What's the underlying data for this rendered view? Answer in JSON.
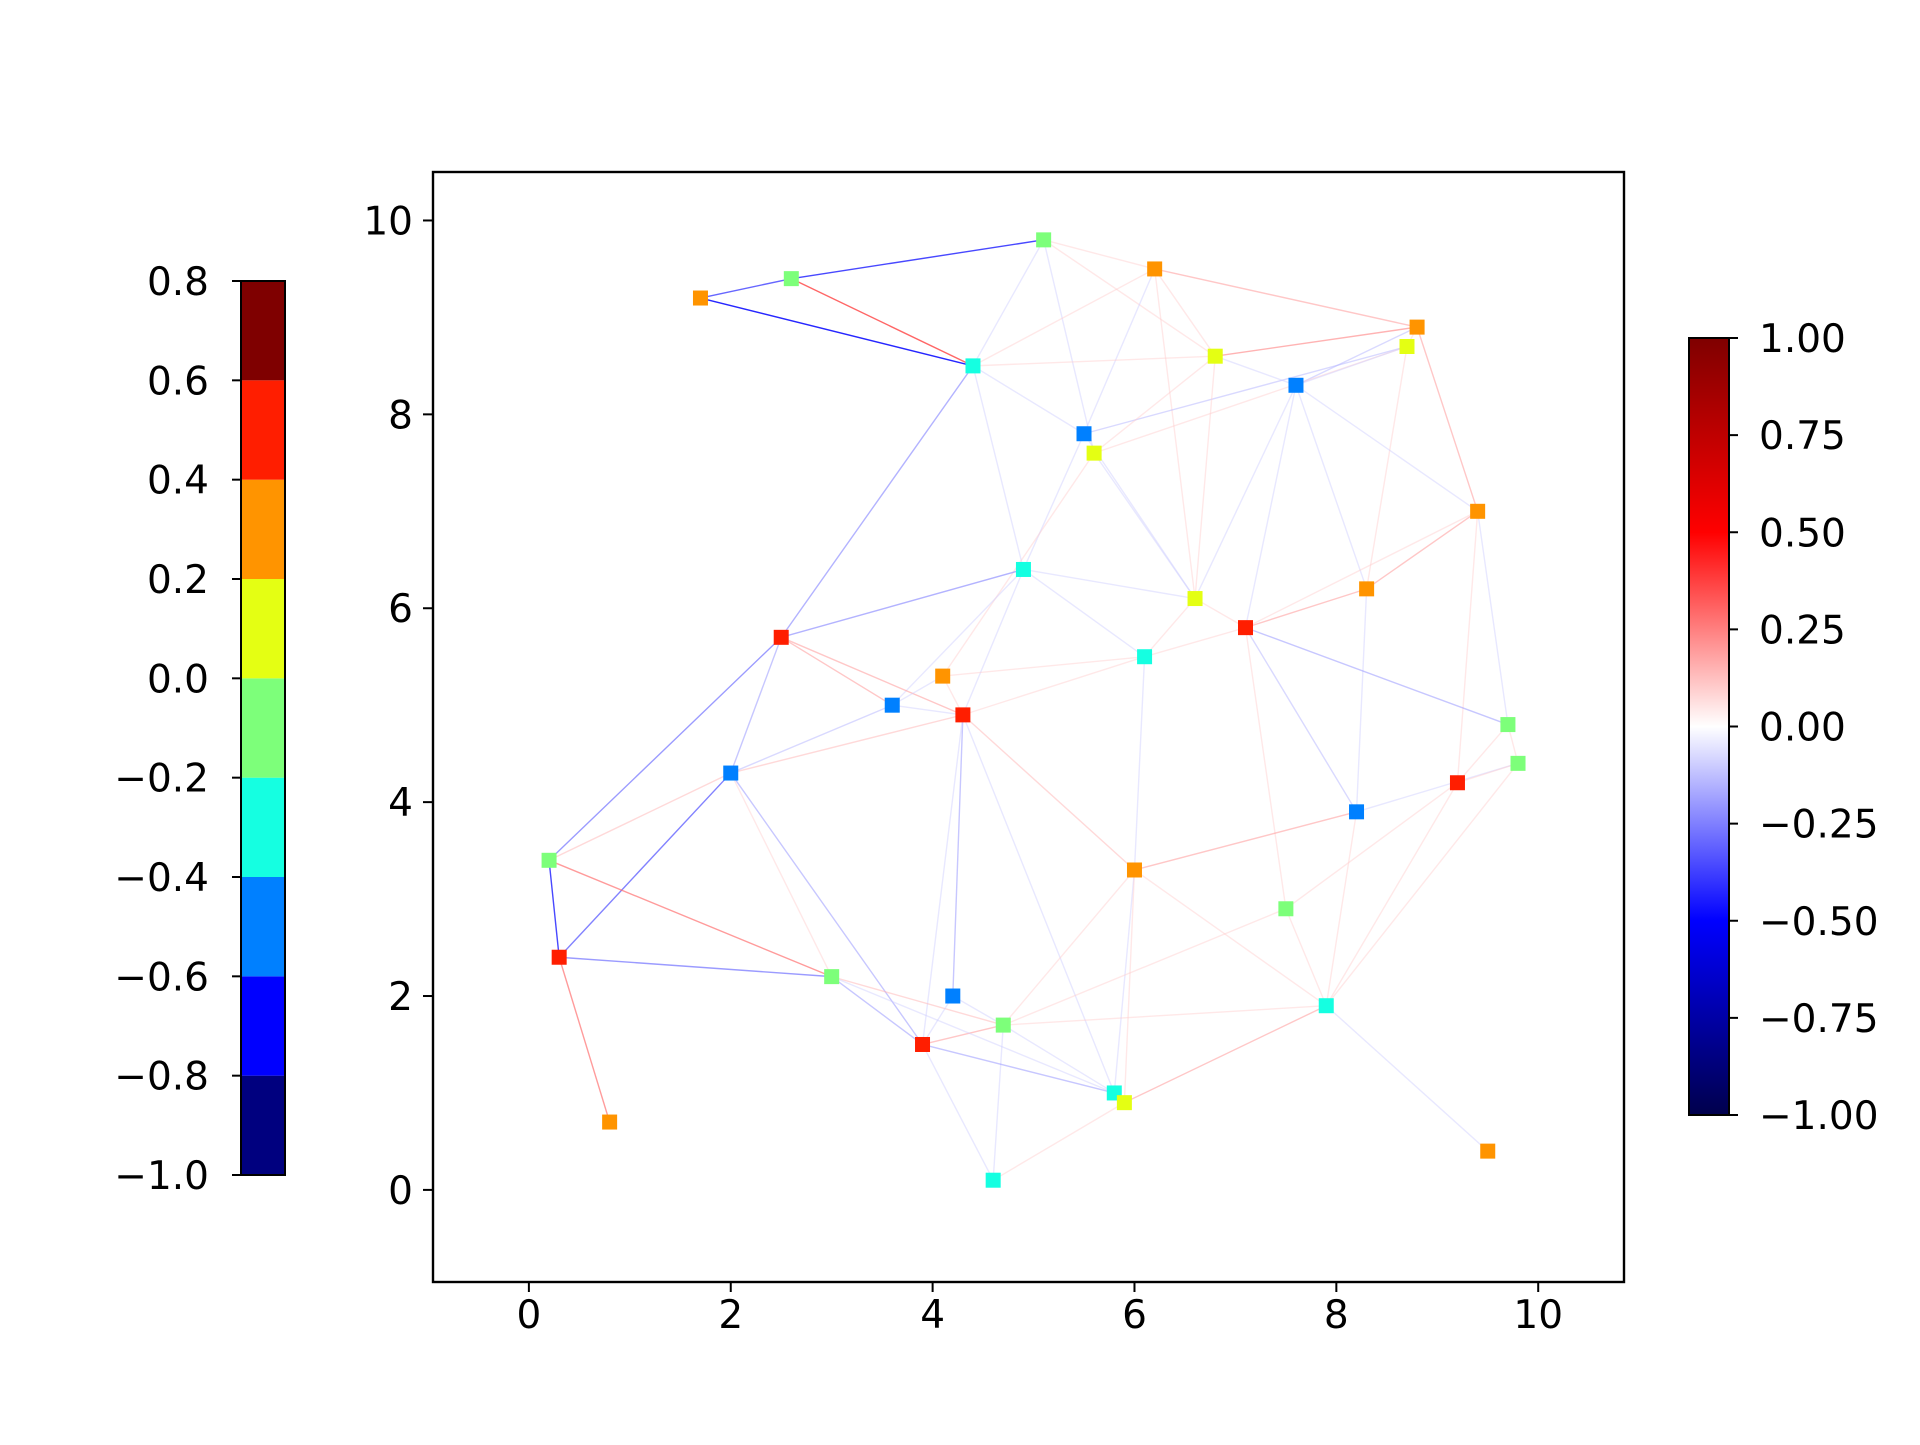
{
  "chart_data": {
    "type": "scatter",
    "title": "",
    "xlabel": "",
    "ylabel": "",
    "xlim": [
      -0.95,
      10.85
    ],
    "ylim": [
      -0.95,
      10.5
    ],
    "x_ticks": [
      "0",
      "2",
      "4",
      "6",
      "8",
      "10"
    ],
    "y_ticks": [
      "0",
      "2",
      "4",
      "6",
      "8",
      "10"
    ],
    "grid": false,
    "nodes": [
      {
        "x": 1.7,
        "y": 9.2,
        "value": 0.3
      },
      {
        "x": 2.6,
        "y": 9.4,
        "value": -0.1
      },
      {
        "x": 5.1,
        "y": 9.8,
        "value": -0.1
      },
      {
        "x": 6.2,
        "y": 9.5,
        "value": 0.3
      },
      {
        "x": 8.8,
        "y": 8.9,
        "value": 0.3
      },
      {
        "x": 8.7,
        "y": 8.7,
        "value": 0.1
      },
      {
        "x": 6.8,
        "y": 8.6,
        "value": 0.1
      },
      {
        "x": 4.4,
        "y": 8.5,
        "value": -0.3
      },
      {
        "x": 7.6,
        "y": 8.3,
        "value": -0.5
      },
      {
        "x": 5.5,
        "y": 7.8,
        "value": -0.5
      },
      {
        "x": 5.6,
        "y": 7.6,
        "value": 0.1
      },
      {
        "x": 9.4,
        "y": 7.0,
        "value": 0.3
      },
      {
        "x": 4.9,
        "y": 6.4,
        "value": -0.3
      },
      {
        "x": 8.3,
        "y": 6.2,
        "value": 0.3
      },
      {
        "x": 6.6,
        "y": 6.1,
        "value": 0.1
      },
      {
        "x": 7.1,
        "y": 5.8,
        "value": 0.5
      },
      {
        "x": 2.5,
        "y": 5.7,
        "value": 0.5
      },
      {
        "x": 6.1,
        "y": 5.5,
        "value": -0.3
      },
      {
        "x": 4.1,
        "y": 5.3,
        "value": 0.3
      },
      {
        "x": 3.6,
        "y": 5.0,
        "value": -0.5
      },
      {
        "x": 4.3,
        "y": 4.9,
        "value": 0.5
      },
      {
        "x": 9.7,
        "y": 4.8,
        "value": -0.1
      },
      {
        "x": 9.8,
        "y": 4.4,
        "value": -0.1
      },
      {
        "x": 2.0,
        "y": 4.3,
        "value": -0.5
      },
      {
        "x": 9.2,
        "y": 4.2,
        "value": 0.5
      },
      {
        "x": 8.2,
        "y": 3.9,
        "value": -0.5
      },
      {
        "x": 0.2,
        "y": 3.4,
        "value": -0.1
      },
      {
        "x": 6.0,
        "y": 3.3,
        "value": 0.3
      },
      {
        "x": 7.5,
        "y": 2.9,
        "value": -0.1
      },
      {
        "x": 0.3,
        "y": 2.4,
        "value": 0.5
      },
      {
        "x": 3.0,
        "y": 2.2,
        "value": -0.1
      },
      {
        "x": 4.2,
        "y": 2.0,
        "value": -0.5
      },
      {
        "x": 7.9,
        "y": 1.9,
        "value": -0.3
      },
      {
        "x": 4.7,
        "y": 1.7,
        "value": -0.1
      },
      {
        "x": 3.9,
        "y": 1.5,
        "value": 0.5
      },
      {
        "x": 5.8,
        "y": 1.0,
        "value": -0.3
      },
      {
        "x": 5.9,
        "y": 0.9,
        "value": 0.1
      },
      {
        "x": 0.8,
        "y": 0.7,
        "value": 0.3
      },
      {
        "x": 9.5,
        "y": 0.4,
        "value": 0.3
      },
      {
        "x": 4.6,
        "y": 0.1,
        "value": -0.3
      }
    ],
    "edges": [
      {
        "source": 0,
        "target": 1,
        "weight": -0.4
      },
      {
        "source": 0,
        "target": 7,
        "weight": -0.5
      },
      {
        "source": 1,
        "target": 2,
        "weight": -0.45
      },
      {
        "source": 1,
        "target": 7,
        "weight": 0.4
      },
      {
        "source": 2,
        "target": 3,
        "weight": 0.1
      },
      {
        "source": 2,
        "target": 7,
        "weight": -0.1
      },
      {
        "source": 2,
        "target": 10,
        "weight": -0.1
      },
      {
        "source": 2,
        "target": 6,
        "weight": 0.1
      },
      {
        "source": 3,
        "target": 4,
        "weight": 0.2
      },
      {
        "source": 3,
        "target": 6,
        "weight": 0.1
      },
      {
        "source": 3,
        "target": 9,
        "weight": -0.1
      },
      {
        "source": 3,
        "target": 14,
        "weight": 0.1
      },
      {
        "source": 3,
        "target": 7,
        "weight": 0.1
      },
      {
        "source": 4,
        "target": 5,
        "weight": 0.1
      },
      {
        "source": 4,
        "target": 6,
        "weight": 0.25
      },
      {
        "source": 4,
        "target": 11,
        "weight": 0.2
      },
      {
        "source": 4,
        "target": 8,
        "weight": -0.15
      },
      {
        "source": 5,
        "target": 9,
        "weight": -0.15
      },
      {
        "source": 5,
        "target": 10,
        "weight": 0.1
      },
      {
        "source": 5,
        "target": 13,
        "weight": 0.1
      },
      {
        "source": 5,
        "target": 8,
        "weight": -0.1
      },
      {
        "source": 6,
        "target": 8,
        "weight": -0.1
      },
      {
        "source": 6,
        "target": 14,
        "weight": 0.1
      },
      {
        "source": 6,
        "target": 10,
        "weight": 0.1
      },
      {
        "source": 7,
        "target": 16,
        "weight": -0.25
      },
      {
        "source": 7,
        "target": 9,
        "weight": -0.1
      },
      {
        "source": 7,
        "target": 12,
        "weight": -0.1
      },
      {
        "source": 7,
        "target": 6,
        "weight": 0.1
      },
      {
        "source": 8,
        "target": 11,
        "weight": -0.1
      },
      {
        "source": 8,
        "target": 13,
        "weight": -0.1
      },
      {
        "source": 8,
        "target": 15,
        "weight": -0.1
      },
      {
        "source": 8,
        "target": 14,
        "weight": -0.1
      },
      {
        "source": 9,
        "target": 12,
        "weight": -0.1
      },
      {
        "source": 9,
        "target": 14,
        "weight": -0.1
      },
      {
        "source": 10,
        "target": 14,
        "weight": -0.1
      },
      {
        "source": 10,
        "target": 18,
        "weight": 0.1
      },
      {
        "source": 11,
        "target": 13,
        "weight": 0.2
      },
      {
        "source": 11,
        "target": 21,
        "weight": -0.1
      },
      {
        "source": 11,
        "target": 24,
        "weight": 0.1
      },
      {
        "source": 11,
        "target": 15,
        "weight": 0.1
      },
      {
        "source": 12,
        "target": 16,
        "weight": -0.25
      },
      {
        "source": 12,
        "target": 14,
        "weight": -0.1
      },
      {
        "source": 12,
        "target": 17,
        "weight": -0.1
      },
      {
        "source": 12,
        "target": 19,
        "weight": -0.1
      },
      {
        "source": 12,
        "target": 20,
        "weight": -0.1
      },
      {
        "source": 13,
        "target": 15,
        "weight": 0.2
      },
      {
        "source": 13,
        "target": 25,
        "weight": -0.1
      },
      {
        "source": 14,
        "target": 17,
        "weight": 0.1
      },
      {
        "source": 14,
        "target": 15,
        "weight": 0.1
      },
      {
        "source": 15,
        "target": 21,
        "weight": -0.2
      },
      {
        "source": 15,
        "target": 25,
        "weight": -0.15
      },
      {
        "source": 15,
        "target": 17,
        "weight": 0.1
      },
      {
        "source": 15,
        "target": 28,
        "weight": 0.1
      },
      {
        "source": 16,
        "target": 19,
        "weight": 0.2
      },
      {
        "source": 16,
        "target": 20,
        "weight": 0.2
      },
      {
        "source": 16,
        "target": 23,
        "weight": -0.2
      },
      {
        "source": 16,
        "target": 26,
        "weight": -0.3
      },
      {
        "source": 17,
        "target": 20,
        "weight": 0.1
      },
      {
        "source": 17,
        "target": 27,
        "weight": -0.1
      },
      {
        "source": 17,
        "target": 18,
        "weight": 0.1
      },
      {
        "source": 18,
        "target": 19,
        "weight": -0.1
      },
      {
        "source": 18,
        "target": 20,
        "weight": 0.1
      },
      {
        "source": 19,
        "target": 23,
        "weight": -0.15
      },
      {
        "source": 19,
        "target": 20,
        "weight": -0.1
      },
      {
        "source": 20,
        "target": 23,
        "weight": 0.15
      },
      {
        "source": 20,
        "target": 27,
        "weight": 0.15
      },
      {
        "source": 20,
        "target": 31,
        "weight": -0.2
      },
      {
        "source": 20,
        "target": 34,
        "weight": -0.1
      },
      {
        "source": 20,
        "target": 35,
        "weight": -0.1
      },
      {
        "source": 21,
        "target": 22,
        "weight": 0.1
      },
      {
        "source": 21,
        "target": 24,
        "weight": 0.1
      },
      {
        "source": 22,
        "target": 32,
        "weight": 0.1
      },
      {
        "source": 22,
        "target": 25,
        "weight": -0.1
      },
      {
        "source": 22,
        "target": 24,
        "weight": 0.1
      },
      {
        "source": 23,
        "target": 26,
        "weight": 0.15
      },
      {
        "source": 23,
        "target": 29,
        "weight": -0.35
      },
      {
        "source": 23,
        "target": 34,
        "weight": -0.2
      },
      {
        "source": 23,
        "target": 30,
        "weight": 0.1
      },
      {
        "source": 24,
        "target": 28,
        "weight": 0.1
      },
      {
        "source": 24,
        "target": 32,
        "weight": 0.1
      },
      {
        "source": 25,
        "target": 27,
        "weight": 0.2
      },
      {
        "source": 25,
        "target": 32,
        "weight": 0.1
      },
      {
        "source": 26,
        "target": 29,
        "weight": -0.45
      },
      {
        "source": 26,
        "target": 30,
        "weight": 0.3
      },
      {
        "source": 27,
        "target": 35,
        "weight": -0.1
      },
      {
        "source": 27,
        "target": 36,
        "weight": 0.1
      },
      {
        "source": 27,
        "target": 32,
        "weight": 0.1
      },
      {
        "source": 27,
        "target": 33,
        "weight": 0.1
      },
      {
        "source": 28,
        "target": 33,
        "weight": 0.1
      },
      {
        "source": 28,
        "target": 32,
        "weight": 0.1
      },
      {
        "source": 29,
        "target": 30,
        "weight": -0.3
      },
      {
        "source": 29,
        "target": 37,
        "weight": 0.3
      },
      {
        "source": 30,
        "target": 34,
        "weight": -0.2
      },
      {
        "source": 30,
        "target": 33,
        "weight": 0.15
      },
      {
        "source": 31,
        "target": 34,
        "weight": -0.1
      },
      {
        "source": 31,
        "target": 33,
        "weight": -0.1
      },
      {
        "source": 32,
        "target": 33,
        "weight": 0.1
      },
      {
        "source": 32,
        "target": 36,
        "weight": 0.2
      },
      {
        "source": 32,
        "target": 38,
        "weight": -0.1
      },
      {
        "source": 33,
        "target": 34,
        "weight": 0.2
      },
      {
        "source": 33,
        "target": 35,
        "weight": -0.1
      },
      {
        "source": 33,
        "target": 39,
        "weight": -0.1
      },
      {
        "source": 34,
        "target": 35,
        "weight": -0.2
      },
      {
        "source": 34,
        "target": 39,
        "weight": -0.1
      },
      {
        "source": 35,
        "target": 36,
        "weight": 0.1
      },
      {
        "source": 36,
        "target": 39,
        "weight": 0.1
      },
      {
        "source": 30,
        "target": 35,
        "weight": -0.1
      }
    ],
    "node_colorbar": {
      "type": "discrete",
      "boundaries": [
        -1.0,
        -0.8,
        -0.6,
        -0.4,
        -0.2,
        0.0,
        0.2,
        0.4,
        0.6,
        0.8
      ],
      "colors": [
        "#00007f",
        "#0000ff",
        "#0080ff",
        "#15ffe1",
        "#7dff7a",
        "#e4ff13",
        "#ff9400",
        "#ff1e00",
        "#7f0000"
      ],
      "tick_labels": [
        "−1.0",
        "−0.8",
        "−0.6",
        "−0.4",
        "−0.2",
        "0.0",
        "0.2",
        "0.4",
        "0.6",
        "0.8"
      ],
      "placement": "left"
    },
    "edge_colorbar": {
      "type": "continuous",
      "colormap": "seismic",
      "range": [
        -1.0,
        1.0
      ],
      "tick_labels": [
        "−1.00",
        "−0.75",
        "−0.50",
        "−0.25",
        "0.00",
        "0.25",
        "0.50",
        "0.75",
        "1.00"
      ],
      "placement": "right"
    }
  }
}
